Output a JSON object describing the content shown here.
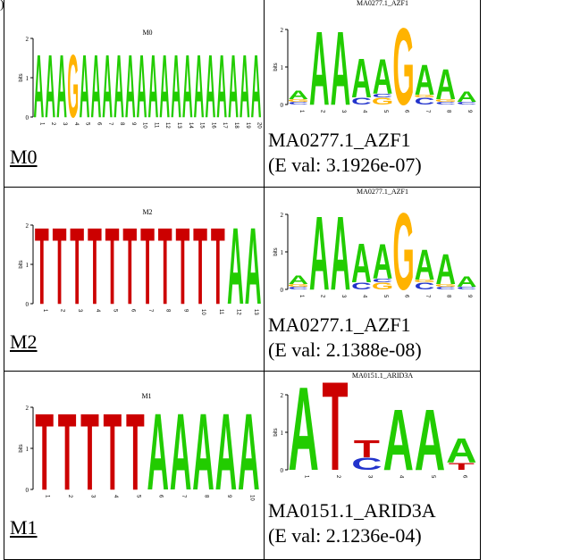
{
  "corner_mark": ")",
  "rows": [
    {
      "query": {
        "label": "M0",
        "logo_title": "M0",
        "letters": [
          "A",
          "A",
          "A",
          "G",
          "A",
          "A",
          "A",
          "A",
          "A",
          "A",
          "A",
          "A",
          "A",
          "A",
          "A",
          "A",
          "A",
          "A",
          "A",
          "A"
        ],
        "positions": [
          "1",
          "2",
          "3",
          "4",
          "5",
          "6",
          "7",
          "8",
          "9",
          "10",
          "11",
          "12",
          "13",
          "14",
          "15",
          "16",
          "17",
          "18",
          "19",
          "20"
        ]
      },
      "match": {
        "logo_title": "MA0277.1_AZF1",
        "name": "MA0277.1_AZF1",
        "eval": "(E val: 3.1926e-07)",
        "positions": [
          "1",
          "2",
          "3",
          "4",
          "5",
          "6",
          "7",
          "8",
          "9"
        ]
      }
    },
    {
      "query": {
        "label": "M2",
        "logo_title": "M2",
        "letters": [
          "T",
          "T",
          "T",
          "T",
          "T",
          "T",
          "T",
          "T",
          "T",
          "T",
          "T",
          "A",
          "A"
        ],
        "positions": [
          "1",
          "2",
          "3",
          "4",
          "5",
          "6",
          "7",
          "8",
          "9",
          "10",
          "11",
          "12",
          "13"
        ]
      },
      "match": {
        "logo_title": "MA0277.1_AZF1",
        "name": "MA0277.1_AZF1",
        "eval": "(E val: 2.1388e-08)",
        "positions": [
          "1",
          "2",
          "3",
          "4",
          "5",
          "6",
          "7",
          "8",
          "9"
        ]
      }
    },
    {
      "query": {
        "label": "M1",
        "logo_title": "M1",
        "letters": [
          "T",
          "T",
          "T",
          "T",
          "T",
          "A",
          "A",
          "A",
          "A",
          "A"
        ],
        "positions": [
          "1",
          "2",
          "3",
          "4",
          "5",
          "6",
          "7",
          "8",
          "9",
          "10"
        ]
      },
      "match": {
        "logo_title": "MA0151.1_ARID3A",
        "name": "MA0151.1_ARID3A",
        "eval": "(E val: 2.1236e-04)",
        "positions": [
          "1",
          "2",
          "3",
          "4",
          "5",
          "6"
        ]
      }
    }
  ],
  "axis": {
    "ylabel": "bits",
    "ticks": [
      "0",
      "1",
      "2"
    ]
  },
  "colors": {
    "A": "#22cc00",
    "T": "#cc0000",
    "G": "#ffb300",
    "C": "#2233cc"
  }
}
